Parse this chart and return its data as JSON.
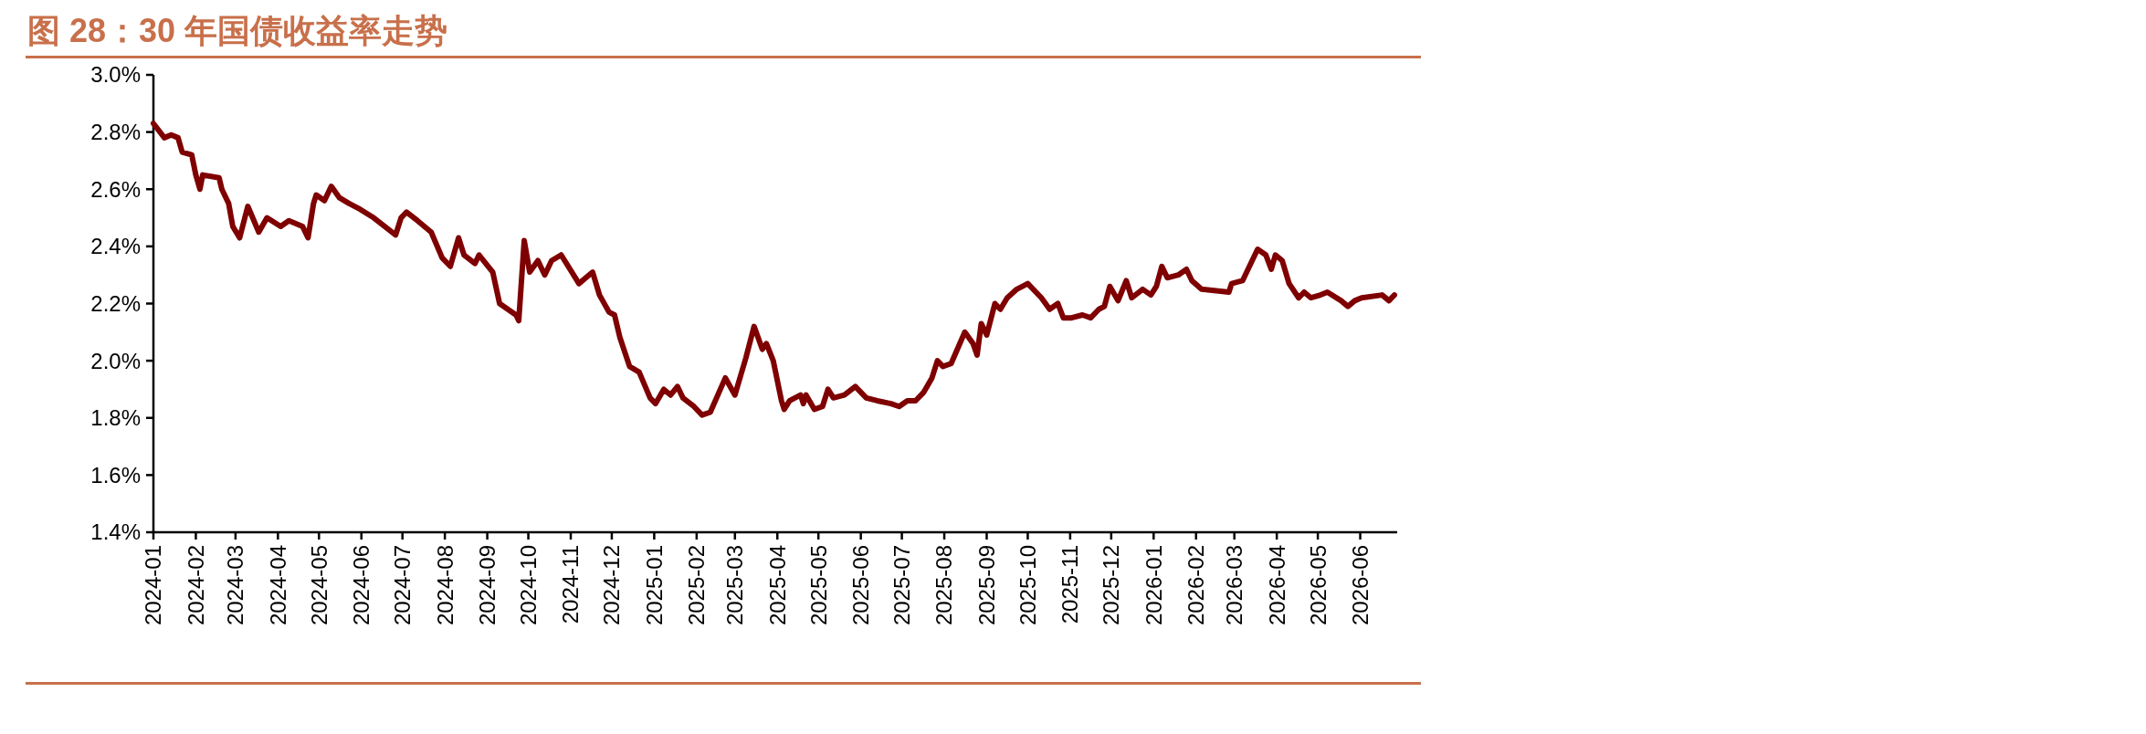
{
  "chart_data": {
    "type": "line",
    "title": "图 28：30 年国债收益率走势",
    "x": [
      "2024-01-01",
      "2024-01-09",
      "2024-01-14",
      "2024-01-19",
      "2024-01-22",
      "2024-01-29",
      "2024-02-01",
      "2024-02-04",
      "2024-02-06",
      "2024-02-18",
      "2024-02-20",
      "2024-02-25",
      "2024-02-28",
      "2024-03-04",
      "2024-03-10",
      "2024-03-18",
      "2024-03-24",
      "2024-04-03",
      "2024-04-09",
      "2024-04-19",
      "2024-04-23",
      "2024-04-27",
      "2024-04-29",
      "2024-05-05",
      "2024-05-10",
      "2024-05-16",
      "2024-05-23",
      "2024-05-31",
      "2024-06-10",
      "2024-06-26",
      "2024-06-30",
      "2024-07-04",
      "2024-07-12",
      "2024-07-22",
      "2024-07-30",
      "2024-08-05",
      "2024-08-11",
      "2024-08-15",
      "2024-08-23",
      "2024-08-26",
      "2024-09-05",
      "2024-09-10",
      "2024-09-22",
      "2024-09-24",
      "2024-09-28",
      "2024-10-02",
      "2024-10-08",
      "2024-10-13",
      "2024-10-18",
      "2024-10-25",
      "2024-11-07",
      "2024-11-17",
      "2024-11-22",
      "2024-11-29",
      "2024-12-03",
      "2024-12-07",
      "2024-12-14",
      "2024-12-21",
      "2024-12-29",
      "2025-01-02",
      "2025-01-08",
      "2025-01-13",
      "2025-01-18",
      "2025-01-22",
      "2025-01-30",
      "2025-02-05",
      "2025-02-11",
      "2025-02-22",
      "2025-03-01",
      "2025-03-09",
      "2025-03-15",
      "2025-03-21",
      "2025-03-24",
      "2025-03-29",
      "2025-04-04",
      "2025-04-06",
      "2025-04-10",
      "2025-04-18",
      "2025-04-20",
      "2025-04-22",
      "2025-04-28",
      "2025-05-04",
      "2025-05-08",
      "2025-05-12",
      "2025-05-20",
      "2025-05-28",
      "2025-06-05",
      "2025-06-13",
      "2025-06-23",
      "2025-06-29",
      "2025-07-05",
      "2025-07-11",
      "2025-07-17",
      "2025-07-23",
      "2025-07-27",
      "2025-07-31",
      "2025-08-06",
      "2025-08-16",
      "2025-08-22",
      "2025-08-25",
      "2025-08-28",
      "2025-09-01",
      "2025-09-07",
      "2025-09-11",
      "2025-09-16",
      "2025-09-23",
      "2025-10-01",
      "2025-10-11",
      "2025-10-17",
      "2025-10-23",
      "2025-10-27",
      "2025-11-02",
      "2025-11-10",
      "2025-11-16",
      "2025-11-22",
      "2025-11-26",
      "2025-11-30",
      "2025-12-06",
      "2025-12-12",
      "2025-12-16",
      "2025-12-24",
      "2025-12-30",
      "2026-01-03",
      "2026-01-07",
      "2026-01-11",
      "2026-01-19",
      "2026-01-25",
      "2026-01-29",
      "2026-02-05",
      "2026-02-25",
      "2026-02-27",
      "2026-03-07",
      "2026-03-14",
      "2026-03-18",
      "2026-03-24",
      "2026-03-28",
      "2026-03-31",
      "2026-04-05",
      "2026-04-10",
      "2026-04-17",
      "2026-04-21",
      "2026-04-26",
      "2026-05-03",
      "2026-05-08",
      "2026-05-18",
      "2026-05-23",
      "2026-05-28",
      "2026-06-02",
      "2026-06-17",
      "2026-06-22",
      "2026-06-26"
    ],
    "series": [
      {
        "color": "#7f0000",
        "values": [
          2.83,
          2.78,
          2.79,
          2.78,
          2.73,
          2.72,
          2.65,
          2.6,
          2.65,
          2.64,
          2.6,
          2.55,
          2.47,
          2.43,
          2.54,
          2.45,
          2.5,
          2.47,
          2.49,
          2.47,
          2.43,
          2.55,
          2.58,
          2.56,
          2.61,
          2.57,
          2.55,
          2.53,
          2.5,
          2.44,
          2.5,
          2.52,
          2.49,
          2.45,
          2.36,
          2.33,
          2.43,
          2.37,
          2.34,
          2.37,
          2.31,
          2.2,
          2.16,
          2.14,
          2.42,
          2.31,
          2.35,
          2.3,
          2.35,
          2.37,
          2.27,
          2.31,
          2.23,
          2.17,
          2.16,
          2.08,
          1.98,
          1.96,
          1.87,
          1.85,
          1.9,
          1.88,
          1.91,
          1.87,
          1.84,
          1.81,
          1.82,
          1.94,
          1.88,
          2.01,
          2.12,
          2.04,
          2.06,
          2.0,
          1.86,
          1.83,
          1.86,
          1.88,
          1.85,
          1.88,
          1.83,
          1.84,
          1.9,
          1.87,
          1.88,
          1.91,
          1.87,
          1.86,
          1.85,
          1.84,
          1.86,
          1.86,
          1.89,
          1.94,
          2.0,
          1.98,
          1.99,
          2.1,
          2.06,
          2.02,
          2.13,
          2.09,
          2.2,
          2.18,
          2.22,
          2.25,
          2.27,
          2.22,
          2.18,
          2.2,
          2.15,
          2.15,
          2.16,
          2.15,
          2.18,
          2.19,
          2.26,
          2.21,
          2.28,
          2.22,
          2.25,
          2.23,
          2.26,
          2.33,
          2.29,
          2.3,
          2.32,
          2.28,
          2.25,
          2.24,
          2.27,
          2.28,
          2.35,
          2.39,
          2.37,
          2.32,
          2.37,
          2.35,
          2.27,
          2.22,
          2.24,
          2.22,
          2.23,
          2.24,
          2.21,
          2.19,
          2.21,
          2.22,
          2.23,
          2.21,
          2.23
        ]
      }
    ],
    "xlim": [
      "2024-01-01",
      "2026-06-28"
    ],
    "xticks": [
      {
        "value": "2024-01-01",
        "label": "2024-01"
      },
      {
        "value": "2024-02-01",
        "label": "2024-02"
      },
      {
        "value": "2024-03-01",
        "label": "2024-03"
      },
      {
        "value": "2024-04-01",
        "label": "2024-04"
      },
      {
        "value": "2024-05-01",
        "label": "2024-05"
      },
      {
        "value": "2024-06-01",
        "label": "2024-06"
      },
      {
        "value": "2024-07-01",
        "label": "2024-07"
      },
      {
        "value": "2024-08-01",
        "label": "2024-08"
      },
      {
        "value": "2024-09-01",
        "label": "2024-09"
      },
      {
        "value": "2024-10-01",
        "label": "2024-10"
      },
      {
        "value": "2024-11-01",
        "label": "2024-11"
      },
      {
        "value": "2024-12-01",
        "label": "2024-12"
      },
      {
        "value": "2025-01-01",
        "label": "2025-01"
      },
      {
        "value": "2025-02-01",
        "label": "2025-02"
      },
      {
        "value": "2025-03-01",
        "label": "2025-03"
      },
      {
        "value": "2025-04-01",
        "label": "2025-04"
      },
      {
        "value": "2025-05-01",
        "label": "2025-05"
      },
      {
        "value": "2025-06-01",
        "label": "2025-06"
      },
      {
        "value": "2025-07-01",
        "label": "2025-07"
      },
      {
        "value": "2025-08-01",
        "label": "2025-08"
      },
      {
        "value": "2025-09-01",
        "label": "2025-09"
      },
      {
        "value": "2025-10-01",
        "label": "2025-10"
      },
      {
        "value": "2025-11-01",
        "label": "2025-11"
      },
      {
        "value": "2025-12-01",
        "label": "2025-12"
      },
      {
        "value": "2026-01-01",
        "label": "2026-01"
      },
      {
        "value": "2026-02-01",
        "label": "2026-02"
      },
      {
        "value": "2026-03-01",
        "label": "2026-03"
      },
      {
        "value": "2026-04-01",
        "label": "2026-04"
      },
      {
        "value": "2026-05-01",
        "label": "2026-05"
      },
      {
        "value": "2026-06-01",
        "label": "2026-06"
      }
    ],
    "ylim": [
      1.4,
      3.0
    ],
    "yticks": [
      {
        "value": 1.4,
        "label": "1.4%"
      },
      {
        "value": 1.6,
        "label": "1.6%"
      },
      {
        "value": 1.8,
        "label": "1.8%"
      },
      {
        "value": 2.0,
        "label": "2.0%"
      },
      {
        "value": 2.2,
        "label": "2.2%"
      },
      {
        "value": 2.4,
        "label": "2.4%"
      },
      {
        "value": 2.6,
        "label": "2.6%"
      },
      {
        "value": 2.8,
        "label": "2.8%"
      },
      {
        "value": 3.0,
        "label": "3.0%"
      }
    ],
    "grid": false,
    "marker": "none",
    "line_style": "solid"
  }
}
